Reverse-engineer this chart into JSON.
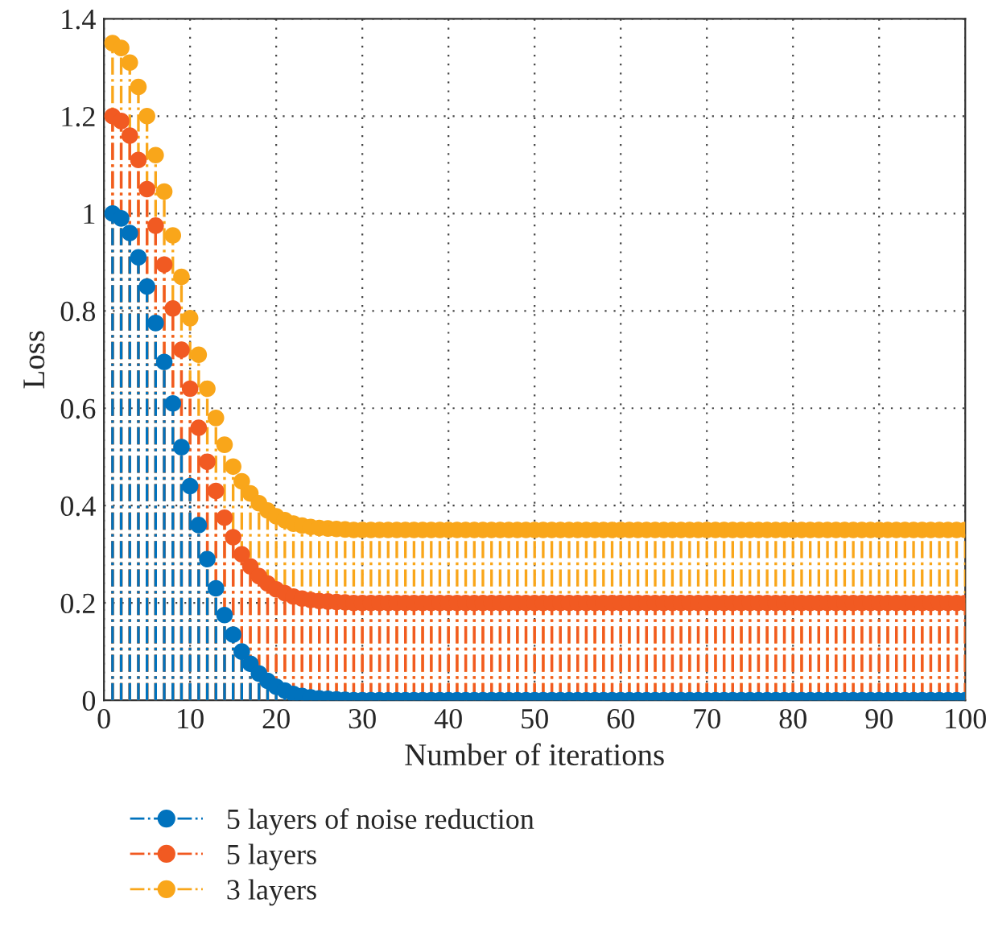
{
  "chart_data": {
    "type": "lollipop",
    "xlabel": "Number of iterations",
    "ylabel": "Loss",
    "x": [
      1,
      2,
      3,
      4,
      5,
      6,
      7,
      8,
      9,
      10,
      11,
      12,
      13,
      14,
      15,
      16,
      17,
      18,
      19,
      20,
      21,
      22,
      23,
      24,
      25,
      26,
      27,
      28,
      29,
      30,
      31,
      32,
      33,
      34,
      35,
      36,
      37,
      38,
      39,
      40,
      41,
      42,
      43,
      44,
      45,
      46,
      47,
      48,
      49,
      50,
      51,
      52,
      53,
      54,
      55,
      56,
      57,
      58,
      59,
      60,
      61,
      62,
      63,
      64,
      65,
      66,
      67,
      68,
      69,
      70,
      71,
      72,
      73,
      74,
      75,
      76,
      77,
      78,
      79,
      80,
      81,
      82,
      83,
      84,
      85,
      86,
      87,
      88,
      89,
      90,
      91,
      92,
      93,
      94,
      95,
      96,
      97,
      98,
      99,
      100
    ],
    "series": [
      {
        "name": "5 layers of noise reduction",
        "color": "#0072bd",
        "values": [
          1.0,
          0.99,
          0.96,
          0.91,
          0.85,
          0.775,
          0.695,
          0.61,
          0.52,
          0.44,
          0.36,
          0.29,
          0.23,
          0.175,
          0.135,
          0.1,
          0.075,
          0.055,
          0.04,
          0.028,
          0.02,
          0.013,
          0.009,
          0.006,
          0.004,
          0.003,
          0.002,
          0.001,
          0,
          0,
          0,
          0,
          0,
          0,
          0,
          0,
          0,
          0,
          0,
          0,
          0,
          0,
          0,
          0,
          0,
          0,
          0,
          0,
          0,
          0,
          0,
          0,
          0,
          0,
          0,
          0,
          0,
          0,
          0,
          0,
          0,
          0,
          0,
          0,
          0,
          0,
          0,
          0,
          0,
          0,
          0,
          0,
          0,
          0,
          0,
          0,
          0,
          0,
          0,
          0,
          0,
          0,
          0,
          0,
          0,
          0,
          0,
          0,
          0,
          0,
          0,
          0,
          0,
          0,
          0,
          0,
          0,
          0,
          0,
          0
        ]
      },
      {
        "name": "5 layers",
        "color": "#f15a22",
        "values": [
          1.2,
          1.19,
          1.16,
          1.11,
          1.05,
          0.975,
          0.895,
          0.805,
          0.72,
          0.64,
          0.56,
          0.49,
          0.43,
          0.375,
          0.335,
          0.3,
          0.275,
          0.255,
          0.24,
          0.228,
          0.22,
          0.213,
          0.209,
          0.206,
          0.204,
          0.203,
          0.202,
          0.201,
          0.2,
          0.2,
          0.2,
          0.2,
          0.2,
          0.2,
          0.2,
          0.2,
          0.2,
          0.2,
          0.2,
          0.2,
          0.2,
          0.2,
          0.2,
          0.2,
          0.2,
          0.2,
          0.2,
          0.2,
          0.2,
          0.2,
          0.2,
          0.2,
          0.2,
          0.2,
          0.2,
          0.2,
          0.2,
          0.2,
          0.2,
          0.2,
          0.2,
          0.2,
          0.2,
          0.2,
          0.2,
          0.2,
          0.2,
          0.2,
          0.2,
          0.2,
          0.2,
          0.2,
          0.2,
          0.2,
          0.2,
          0.2,
          0.2,
          0.2,
          0.2,
          0.2,
          0.2,
          0.2,
          0.2,
          0.2,
          0.2,
          0.2,
          0.2,
          0.2,
          0.2,
          0.2,
          0.2,
          0.2,
          0.2,
          0.2,
          0.2,
          0.2,
          0.2,
          0.2,
          0.2,
          0.2
        ]
      },
      {
        "name": "3 layers",
        "color": "#f9a61a",
        "values": [
          1.35,
          1.34,
          1.31,
          1.26,
          1.2,
          1.12,
          1.045,
          0.955,
          0.87,
          0.785,
          0.71,
          0.64,
          0.58,
          0.525,
          0.48,
          0.45,
          0.425,
          0.405,
          0.39,
          0.378,
          0.37,
          0.363,
          0.359,
          0.356,
          0.354,
          0.353,
          0.352,
          0.351,
          0.35,
          0.35,
          0.35,
          0.35,
          0.35,
          0.35,
          0.35,
          0.35,
          0.35,
          0.35,
          0.35,
          0.35,
          0.35,
          0.35,
          0.35,
          0.35,
          0.35,
          0.35,
          0.35,
          0.35,
          0.35,
          0.35,
          0.35,
          0.35,
          0.35,
          0.35,
          0.35,
          0.35,
          0.35,
          0.35,
          0.35,
          0.35,
          0.35,
          0.35,
          0.35,
          0.35,
          0.35,
          0.35,
          0.35,
          0.35,
          0.35,
          0.35,
          0.35,
          0.35,
          0.35,
          0.35,
          0.35,
          0.35,
          0.35,
          0.35,
          0.35,
          0.35,
          0.35,
          0.35,
          0.35,
          0.35,
          0.35,
          0.35,
          0.35,
          0.35,
          0.35,
          0.35,
          0.35,
          0.35,
          0.35,
          0.35,
          0.35,
          0.35,
          0.35,
          0.35,
          0.35,
          0.35
        ]
      }
    ],
    "xlim": [
      0,
      100
    ],
    "xticks": [
      0,
      10,
      20,
      30,
      40,
      50,
      60,
      70,
      80,
      90,
      100
    ],
    "ylim": [
      0,
      1.4
    ],
    "yticks": [
      0,
      {
        "value": 0.2,
        "label": "0.2"
      },
      {
        "value": 0.4,
        "label": "0.4"
      },
      {
        "value": 0.6,
        "label": "0.6"
      },
      {
        "value": 0.8,
        "label": "0.8"
      },
      1,
      {
        "value": 1.2,
        "label": "1.2"
      },
      {
        "value": 1.4,
        "label": "1.4"
      }
    ],
    "grid": true,
    "legend": "bottom left",
    "marker": "circle",
    "line_style": "dashed"
  }
}
